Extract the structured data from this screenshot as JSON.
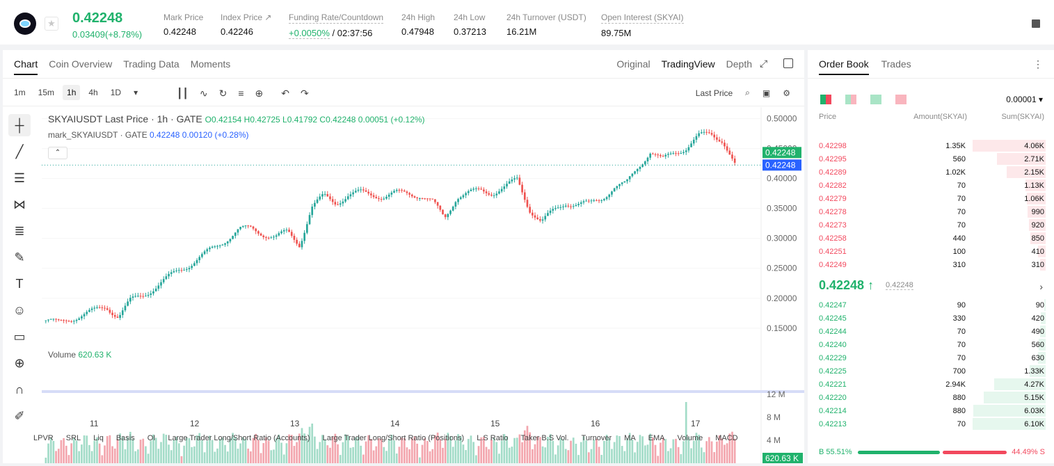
{
  "ticker": {
    "last_price": "0.42248",
    "change": "0.03409(+8.78%)",
    "stats": [
      {
        "label": "Mark Price",
        "value": "0.42248"
      },
      {
        "label": "Index Price ↗",
        "value": "0.42246"
      },
      {
        "label": "Funding Rate/Countdown",
        "value_green": "+0.0050%",
        "value": " / 02:37:56"
      },
      {
        "label": "24h High",
        "value": "0.47948"
      },
      {
        "label": "24h Low",
        "value": "0.37213"
      },
      {
        "label": "24h Turnover (USDT)",
        "value": "16.21M"
      },
      {
        "label": "Open Interest (SKYAI)",
        "value": "89.75M"
      }
    ]
  },
  "chart_tabs": [
    "Chart",
    "Coin Overview",
    "Trading Data",
    "Moments"
  ],
  "view_tabs": [
    "Original",
    "TradingView",
    "Depth"
  ],
  "intervals": [
    "1m",
    "15m",
    "1h",
    "4h",
    "1D"
  ],
  "price_type": "Last Price",
  "legend": {
    "symbol": "SKYAIUSDT Last Price · 1h · GATE",
    "ohlc": "O0.42154  H0.42725  L0.41792  C0.42248  0.00051 (+0.12%)",
    "mark": "mark_SKYAIUSDT · GATE",
    "mark_vals": "0.42248  0.00120 (+0.28%)"
  },
  "volume_label": "Volume",
  "volume_value": "620.63 K",
  "indicators": [
    "LPVR",
    "SRL",
    "Liq",
    "Basis",
    "OI",
    "Large Trader Long/Short Ratio (Accounts)",
    "Large Trader Long/Short Ratio (Positions)",
    "L.S Ratio",
    "Taker B.S Vol.",
    "Turnover",
    "MA",
    "EMA",
    "Volume",
    "MACD"
  ],
  "chart_data": {
    "type": "candlestick",
    "y_axis_ticks": [
      "0.50000",
      "0.45000",
      "0.40000",
      "0.35000",
      "0.30000",
      "0.25000",
      "0.20000",
      "0.15000"
    ],
    "ylim": [
      0.13,
      0.51
    ],
    "x_ticks": [
      "11",
      "12",
      "13",
      "14",
      "15",
      "16",
      "17"
    ],
    "volume_ticks": [
      "12 M",
      "8 M",
      "4 M"
    ],
    "current_price_labels": [
      "0.42248",
      "0.42248"
    ],
    "volume_current": "620.63 K",
    "close_path": [
      0.163,
      0.158,
      0.166,
      0.172,
      0.178,
      0.186,
      0.17,
      0.195,
      0.205,
      0.218,
      0.232,
      0.247,
      0.258,
      0.271,
      0.285,
      0.3,
      0.315,
      0.316,
      0.308,
      0.302,
      0.31,
      0.29,
      0.352,
      0.37,
      0.36,
      0.372,
      0.376,
      0.374,
      0.37,
      0.375,
      0.376,
      0.372,
      0.36,
      0.334,
      0.37,
      0.375,
      0.38,
      0.377,
      0.385,
      0.398,
      0.35,
      0.327,
      0.345,
      0.36,
      0.357,
      0.357,
      0.368,
      0.385,
      0.39,
      0.42,
      0.445,
      0.43,
      0.444,
      0.452,
      0.47,
      0.475,
      0.465,
      0.422
    ]
  },
  "orderbook": {
    "tabs": [
      "Order Book",
      "Trades"
    ],
    "precision": "0.00001",
    "headers": [
      "Price",
      "Amount(SKYAI)",
      "Sum(SKYAI)"
    ],
    "asks": [
      {
        "p": "0.42298",
        "a": "1.35K",
        "s": "4.06K"
      },
      {
        "p": "0.42295",
        "a": "560",
        "s": "2.71K"
      },
      {
        "p": "0.42289",
        "a": "1.02K",
        "s": "2.15K"
      },
      {
        "p": "0.42282",
        "a": "70",
        "s": "1.13K"
      },
      {
        "p": "0.42279",
        "a": "70",
        "s": "1.06K"
      },
      {
        "p": "0.42278",
        "a": "70",
        "s": "990"
      },
      {
        "p": "0.42273",
        "a": "70",
        "s": "920"
      },
      {
        "p": "0.42258",
        "a": "440",
        "s": "850"
      },
      {
        "p": "0.42251",
        "a": "100",
        "s": "410"
      },
      {
        "p": "0.42249",
        "a": "310",
        "s": "310"
      }
    ],
    "mid_price": "0.42248 ↑",
    "mid_mark": "0.42248",
    "bids": [
      {
        "p": "0.42247",
        "a": "90",
        "s": "90"
      },
      {
        "p": "0.42245",
        "a": "330",
        "s": "420"
      },
      {
        "p": "0.42244",
        "a": "70",
        "s": "490"
      },
      {
        "p": "0.42240",
        "a": "70",
        "s": "560"
      },
      {
        "p": "0.42229",
        "a": "70",
        "s": "630"
      },
      {
        "p": "0.42225",
        "a": "700",
        "s": "1.33K"
      },
      {
        "p": "0.42221",
        "a": "2.94K",
        "s": "4.27K"
      },
      {
        "p": "0.42220",
        "a": "880",
        "s": "5.15K"
      },
      {
        "p": "0.42214",
        "a": "880",
        "s": "6.03K"
      },
      {
        "p": "0.42213",
        "a": "70",
        "s": "6.10K"
      }
    ],
    "buy_ratio": "B 55.51%",
    "sell_ratio": "44.49% S"
  }
}
